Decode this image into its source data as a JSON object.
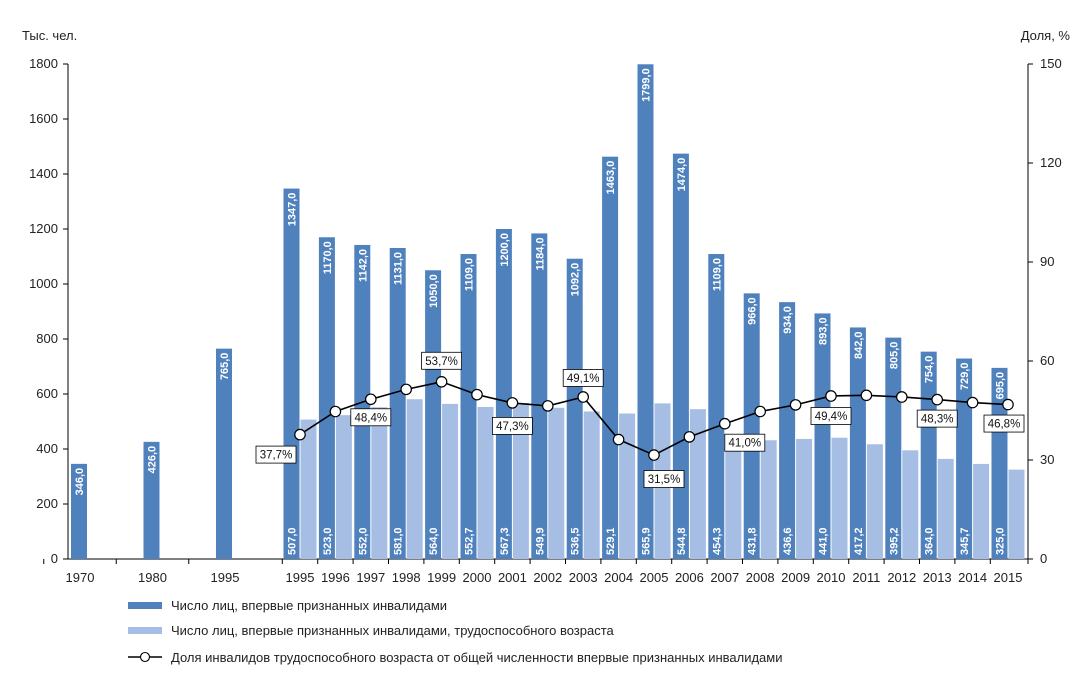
{
  "chart_data": {
    "type": "bar",
    "y_left_label": "Тыс. чел.",
    "y_right_label": "Доля, %",
    "ylim_left": [
      0,
      1800
    ],
    "ylim_right": [
      0,
      150
    ],
    "left_ticks": [
      0,
      200,
      400,
      600,
      800,
      1000,
      1200,
      1400,
      1600,
      1800
    ],
    "right_ticks": [
      0,
      30,
      60,
      90,
      120,
      150
    ],
    "categories": [
      "1970",
      "1980",
      "1995",
      "1995",
      "1996",
      "1997",
      "1998",
      "1999",
      "2000",
      "2001",
      "2002",
      "2003",
      "2004",
      "2005",
      "2006",
      "2007",
      "2008",
      "2009",
      "2010",
      "2011",
      "2012",
      "2013",
      "2014",
      "2015"
    ],
    "grid": false,
    "legend_position": "bottom",
    "series": [
      {
        "name": "Число лиц, впервые признанных инвалидами",
        "kind": "bar",
        "axis": "left",
        "color": "#4f81bd",
        "values": [
          346.0,
          426.0,
          765.0,
          1347.0,
          1170.0,
          1142.0,
          1131.0,
          1050.0,
          1109.0,
          1200.0,
          1184.0,
          1092.0,
          1463.0,
          1799.0,
          1474.0,
          1109.0,
          966.0,
          934.0,
          893.0,
          842.0,
          805.0,
          754.0,
          729.0,
          695.0
        ],
        "labels": [
          "346,0",
          "426,0",
          "765,0",
          "1347,0",
          "1170,0",
          "1142,0",
          "1131,0",
          "1050,0",
          "1109,0",
          "1200,0",
          "1184,0",
          "1092,0",
          "1463,0",
          "1799,0",
          "1474,0",
          "1109,0",
          "966,0",
          "934,0",
          "893,0",
          "842,0",
          "805,0",
          "754,0",
          "729,0",
          "695,0"
        ]
      },
      {
        "name": "Число лиц, впервые признанных инвалидами, трудоспособного возраста",
        "kind": "bar",
        "axis": "left",
        "color": "#a6bde4",
        "values": [
          null,
          null,
          null,
          507.0,
          523.0,
          552.0,
          581.0,
          564.0,
          552.7,
          567.3,
          549.9,
          536.5,
          529.1,
          565.9,
          544.8,
          454.3,
          431.8,
          436.6,
          441.0,
          417.2,
          395.2,
          364.0,
          345.7,
          325.0
        ],
        "labels": [
          "",
          "",
          "",
          "507,0",
          "523,0",
          "552,0",
          "581,0",
          "564,0",
          "552,7",
          "567,3",
          "549,9",
          "536,5",
          "529,1",
          "565,9",
          "544,8",
          "454,3",
          "431,8",
          "436,6",
          "441,0",
          "417,2",
          "395,2",
          "364,0",
          "345,7",
          "325,0"
        ]
      },
      {
        "name": "Доля инвалидов трудоспособного возраста от общей численности впервые признанных инвалидами",
        "kind": "line",
        "axis": "right",
        "color": "#000000",
        "values": [
          null,
          null,
          null,
          37.7,
          44.7,
          48.4,
          51.4,
          53.7,
          49.8,
          47.3,
          46.4,
          49.1,
          36.2,
          31.5,
          37.0,
          41.0,
          44.7,
          46.7,
          49.4,
          49.6,
          49.1,
          48.3,
          47.4,
          46.8
        ],
        "labels": [
          "",
          "",
          "",
          "37,7%",
          "",
          "48,4%",
          "",
          "53,7%",
          "",
          "47,3%",
          "",
          "49,1%",
          "",
          "31,5%",
          "",
          "41,0%",
          "",
          "",
          "49,4%",
          "",
          "",
          "48,3%",
          "",
          "46,8%"
        ]
      }
    ]
  }
}
